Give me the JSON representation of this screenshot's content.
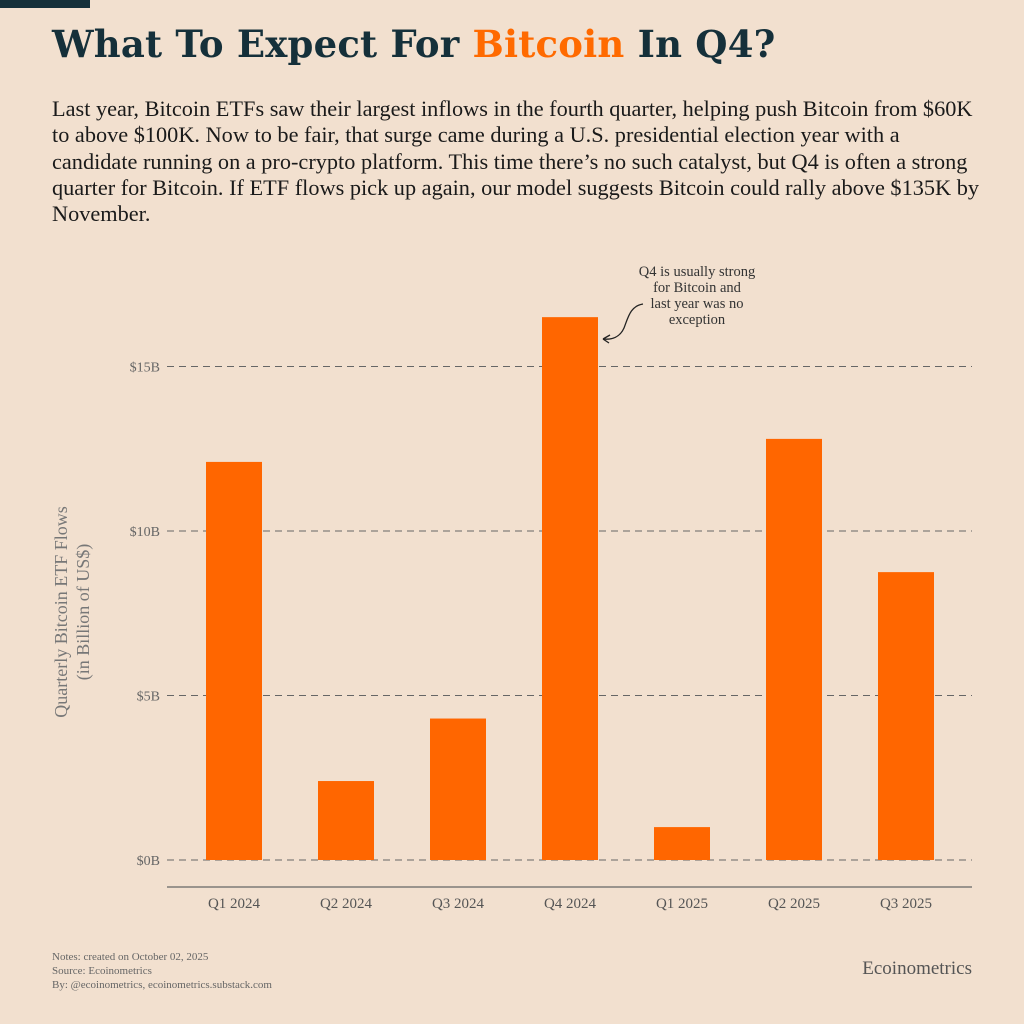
{
  "title": {
    "before": "What To Expect For ",
    "highlight": "Bitcoin",
    "after": " In Q4?"
  },
  "description": "Last year, Bitcoin ETFs saw their largest inflows in the fourth quarter, helping push Bitcoin from $60K to above $100K. Now to be fair, that surge came during a U.S. presidential election year with a candidate running on a pro-crypto platform. This time there’s no such catalyst, but Q4 is often a strong quarter for Bitcoin. If ETF flows pick up again, our model suggests Bitcoin could rally above $135K by November.",
  "chart_data": {
    "type": "bar",
    "categories": [
      "Q1 2024",
      "Q2 2024",
      "Q3 2024",
      "Q4 2024",
      "Q1 2025",
      "Q2 2025",
      "Q3 2025"
    ],
    "values": [
      12.1,
      2.4,
      4.3,
      16.5,
      1.0,
      12.8,
      8.75
    ],
    "ylabel_lines": [
      "Quarterly Bitcoin ETF Flows",
      "(in Billion of US$)"
    ],
    "xlabel": "",
    "ylim": [
      0,
      17
    ],
    "yticks": [
      0,
      5,
      10,
      15
    ],
    "ytick_labels": [
      "$0B",
      "$5B",
      "$10B",
      "$15B"
    ],
    "grid": "horizontal dashed",
    "annotation": {
      "target": "Q4 2024",
      "lines": [
        "Q4 is usually strong",
        "for Bitcoin and",
        "last year was no",
        "exception"
      ]
    },
    "bar_color": "#ff6600"
  },
  "notes": [
    "Notes: created on October 02, 2025",
    "Source: Ecoinometrics",
    "By: @ecoinometrics, ecoinometrics.substack.com"
  ],
  "brand": "Ecoinometrics",
  "colors": {
    "background": "#f2e0cf",
    "accent": "#ff6600",
    "title": "#15303a"
  }
}
